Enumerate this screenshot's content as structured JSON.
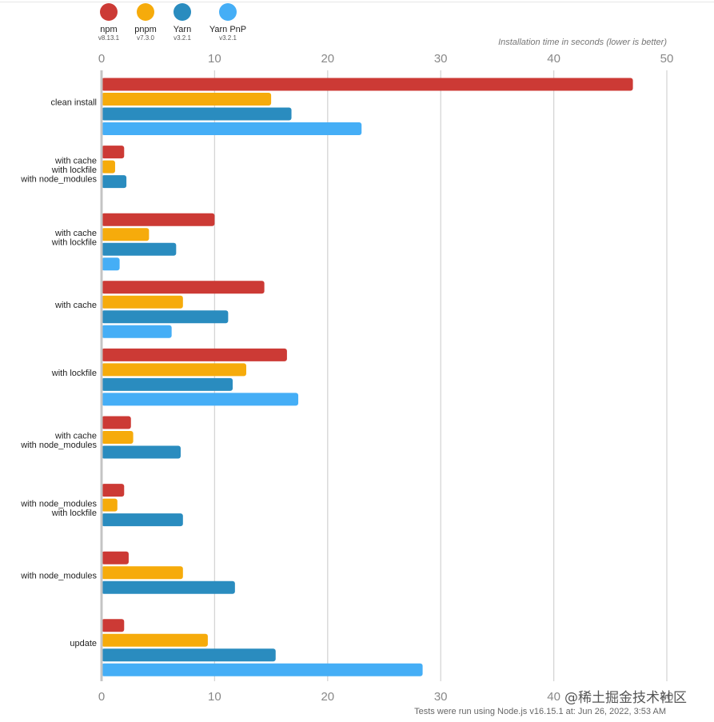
{
  "legend": [
    {
      "name": "npm",
      "version": "v8.13.1",
      "color": "#cc3a35"
    },
    {
      "name": "pnpm",
      "version": "v7.3.0",
      "color": "#f6ab0b"
    },
    {
      "name": "Yarn",
      "version": "v3.2.1",
      "color": "#2a8cbf"
    },
    {
      "name": "Yarn PnP",
      "version": "v3.2.1",
      "color": "#45aef6"
    }
  ],
  "footer_text": "Tests were run using Node.js v16.15.1 at: Jun 26, 2022, 3:53 AM",
  "watermark_text": "@稀土掘金技术社区",
  "chart_data": {
    "type": "bar",
    "orientation": "horizontal",
    "title": "Installation time in seconds (lower is better)",
    "xlim": [
      0,
      50
    ],
    "ticks": [
      0,
      10,
      20,
      30,
      40,
      50
    ],
    "grid": true,
    "legend_position": "top-left",
    "categories": [
      [
        "clean install"
      ],
      [
        "with cache",
        "with lockfile",
        "with node_modules"
      ],
      [
        "with cache",
        "with lockfile"
      ],
      [
        "with cache"
      ],
      [
        "with lockfile"
      ],
      [
        "with cache",
        "with node_modules"
      ],
      [
        "with node_modules",
        "with lockfile"
      ],
      [
        "with node_modules"
      ],
      [
        "update"
      ]
    ],
    "series": [
      {
        "name": "npm",
        "color": "#cc3a35",
        "values": [
          47.0,
          2.0,
          10.0,
          14.4,
          16.4,
          2.6,
          2.0,
          2.4,
          2.0
        ]
      },
      {
        "name": "pnpm",
        "color": "#f6ab0b",
        "values": [
          15.0,
          1.2,
          4.2,
          7.2,
          12.8,
          2.8,
          1.4,
          7.2,
          9.4
        ]
      },
      {
        "name": "Yarn",
        "color": "#2a8cbf",
        "values": [
          16.8,
          2.2,
          6.6,
          11.2,
          11.6,
          7.0,
          7.2,
          11.8,
          15.4
        ]
      },
      {
        "name": "Yarn PnP",
        "color": "#45aef6",
        "values": [
          23.0,
          null,
          1.6,
          6.2,
          17.4,
          null,
          null,
          null,
          28.4
        ]
      }
    ]
  }
}
